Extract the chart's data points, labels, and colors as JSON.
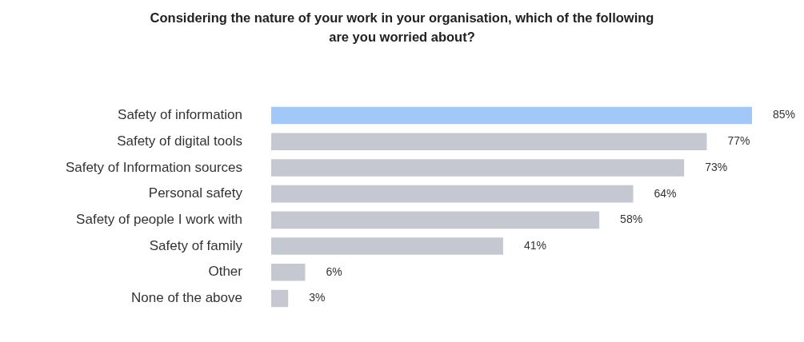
{
  "chart_data": {
    "type": "bar",
    "orientation": "horizontal",
    "title": "Considering the nature of your work in your organisation, which of the following are you worried about?",
    "categories": [
      "Safety of information",
      "Safety of digital tools",
      "Safety of Information sources",
      "Personal safety",
      "Safety of people I work with",
      "Safety of family",
      "Other",
      "None of the above"
    ],
    "values": [
      85,
      77,
      73,
      64,
      58,
      41,
      6,
      3
    ],
    "colors": [
      "#a1c8f7",
      "#c5c8d0",
      "#c5c8d0",
      "#c5c8d0",
      "#c5c8d0",
      "#c5c8d0",
      "#c5c8d0",
      "#c5c8d0"
    ],
    "value_labels": [
      "85%",
      "77%",
      "73%",
      "64%",
      "58%",
      "41%",
      "6%",
      "3%"
    ],
    "legend": false
  }
}
